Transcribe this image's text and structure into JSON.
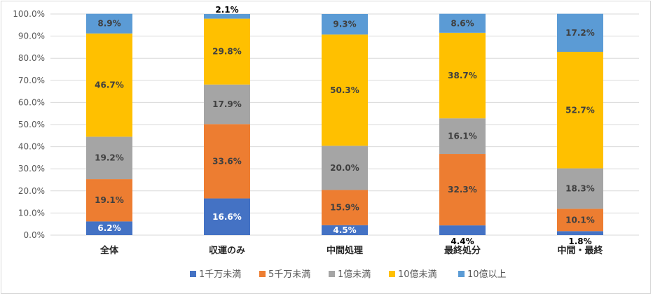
{
  "chart_data": {
    "type": "bar",
    "stacked": true,
    "categories": [
      "全体",
      "収運のみ",
      "中間処理",
      "最終処分",
      "中間・最終"
    ],
    "series": [
      {
        "name": "1千万未満",
        "color": "#4472c4",
        "values": [
          6.2,
          16.6,
          4.5,
          4.4,
          1.8
        ],
        "labels": [
          "6.2%",
          "16.6%",
          "4.5%",
          "4.4%",
          "1.8%"
        ]
      },
      {
        "name": "5千万未満",
        "color": "#ed7d31",
        "values": [
          19.1,
          33.6,
          15.9,
          32.3,
          10.1
        ],
        "labels": [
          "19.1%",
          "33.6%",
          "15.9%",
          "32.3%",
          "10.1%"
        ]
      },
      {
        "name": "1億未満",
        "color": "#a5a5a5",
        "values": [
          19.2,
          17.9,
          20.0,
          16.1,
          18.3
        ],
        "labels": [
          "19.2%",
          "17.9%",
          "20.0%",
          "16.1%",
          "18.3%"
        ]
      },
      {
        "name": "10億未満",
        "color": "#ffc000",
        "values": [
          46.7,
          29.8,
          50.3,
          38.7,
          52.7
        ],
        "labels": [
          "46.7%",
          "29.8%",
          "50.3%",
          "38.7%",
          "52.7%"
        ]
      },
      {
        "name": "10億以上",
        "color": "#5b9bd5",
        "values": [
          8.9,
          2.1,
          9.3,
          8.6,
          17.2
        ],
        "labels": [
          "8.9%",
          "2.1%",
          "9.3%",
          "8.6%",
          "17.2%"
        ]
      }
    ],
    "ylim": [
      0,
      100
    ],
    "yticks": [
      "0.0%",
      "10.0%",
      "20.0%",
      "30.0%",
      "40.0%",
      "50.0%",
      "60.0%",
      "70.0%",
      "80.0%",
      "90.0%",
      "100.0%"
    ],
    "grid": true,
    "legend": "bottom"
  }
}
